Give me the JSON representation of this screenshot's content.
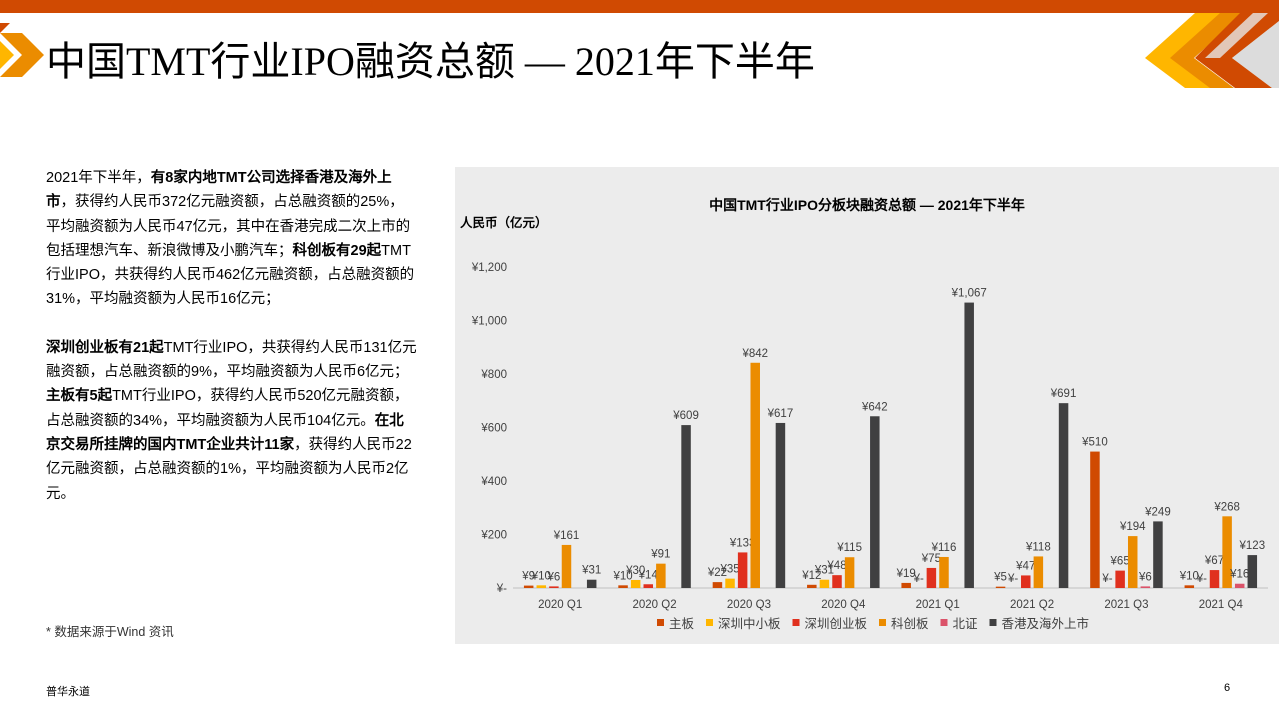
{
  "page": {
    "title": "中国TMT行业IPO融资总额 — 2021年下半年",
    "source_note": "* 数据来源于Wind 资讯",
    "footer_brand": "普华永道",
    "page_number": "6"
  },
  "body": {
    "p1": [
      {
        "t": "2021年下半年，",
        "b": false
      },
      {
        "t": "有8家内地TMT公司选择香港及海外上市",
        "b": true
      },
      {
        "t": "，获得约人民币372亿元融资额，占总融资额的25%，平均融资额为人民币47亿元，其中在香港完成二次上市的包括理想汽车、新浪微博及小鹏汽车；",
        "b": false
      },
      {
        "t": "科创板有29起",
        "b": true
      },
      {
        "t": "TMT行业IPO，共获得约人民币462亿元融资额，占总融资额的31%，平均融资额为人民币16亿元；",
        "b": false
      }
    ],
    "p2": [
      {
        "t": "深圳创业板有21起",
        "b": true
      },
      {
        "t": "TMT行业IPO，共获得约人民币131亿元融资额，占总融资额的9%，平均融资额为人民币6亿元；",
        "b": false
      },
      {
        "t": "主板有5起",
        "b": true
      },
      {
        "t": "TMT行业IPO，获得约人民币520亿元融资额，占总融资额的34%，平均融资额为人民币104亿元。",
        "b": false
      },
      {
        "t": "在北京交易所挂牌的国内TMT企业共计11家",
        "b": true
      },
      {
        "t": "，获得约人民币22亿元融资额，占总融资额的1%，平均融资额为人民币2亿元。",
        "b": false
      }
    ]
  },
  "chart_data": {
    "type": "bar",
    "title": "中国TMT行业IPO分板块融资总额 — 2021年下半年",
    "ylabel": "人民币（亿元）",
    "ylim": [
      0,
      1200
    ],
    "yticks": [
      0,
      200,
      400,
      600,
      800,
      1000,
      1200
    ],
    "ytick_labels": [
      "¥-",
      "¥200",
      "¥400",
      "¥600",
      "¥800",
      "¥1,000",
      "¥1,200"
    ],
    "grid": false,
    "legend_position": "bottom",
    "categories": [
      "2020 Q1",
      "2020 Q2",
      "2020 Q3",
      "2020 Q4",
      "2021 Q1",
      "2021 Q2",
      "2021 Q3",
      "2021 Q4"
    ],
    "series": [
      {
        "name": "主板",
        "color": "#d04a02",
        "values": [
          9,
          10,
          22,
          12,
          19,
          5,
          510,
          10
        ],
        "labels": [
          "¥9",
          "¥10",
          "¥22",
          "¥12",
          "¥19",
          "¥5",
          "¥510",
          "¥10"
        ]
      },
      {
        "name": "深圳中小板",
        "color": "#ffb600",
        "values": [
          10,
          30,
          35,
          31,
          0,
          0,
          0,
          0
        ],
        "labels": [
          "¥10",
          "¥30",
          "¥35",
          "¥31",
          "¥-",
          "¥-",
          "¥-",
          "¥-"
        ]
      },
      {
        "name": "深圳创业板",
        "color": "#e0301e",
        "values": [
          6,
          14,
          133,
          48,
          75,
          47,
          65,
          67
        ],
        "labels": [
          "¥6",
          "¥14",
          "¥133",
          "¥48",
          "¥75",
          "¥47",
          "¥65",
          "¥67"
        ]
      },
      {
        "name": "科创板",
        "color": "#eb8c00",
        "values": [
          161,
          91,
          842,
          115,
          116,
          118,
          194,
          268
        ],
        "labels": [
          "¥161",
          "¥91",
          "¥842",
          "¥115",
          "¥116",
          "¥118",
          "¥194",
          "¥268"
        ]
      },
      {
        "name": "北证",
        "color": "#db536a",
        "values": [
          0,
          0,
          0,
          0,
          0,
          0,
          6,
          16
        ],
        "labels": [
          "",
          "",
          "",
          "",
          "",
          "",
          "¥6",
          "¥16"
        ]
      },
      {
        "name": "香港及海外上市",
        "color": "#404041",
        "values": [
          31,
          609,
          617,
          642,
          1067,
          691,
          249,
          123
        ],
        "labels": [
          "¥31",
          "¥609",
          "¥617",
          "¥642",
          "¥1,067",
          "¥691",
          "¥249",
          "¥123"
        ]
      }
    ]
  }
}
